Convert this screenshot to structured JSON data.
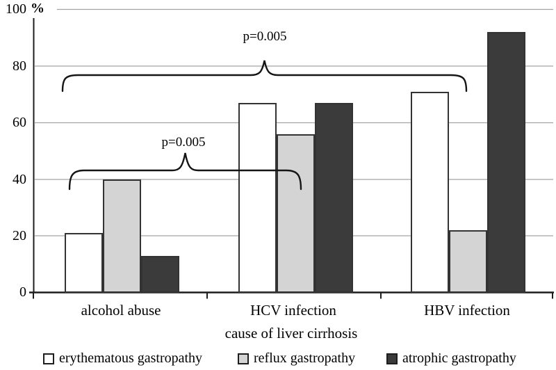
{
  "chart_data": {
    "type": "bar",
    "title": "",
    "categories": [
      "alcohol abuse",
      "HCV infection",
      "HBV infection"
    ],
    "series": [
      {
        "name": "erythematous gastropathy",
        "color": "#ffffff",
        "values": [
          21,
          67,
          71
        ]
      },
      {
        "name": "reflux gastropathy",
        "color": "#d4d4d4",
        "values": [
          40,
          56,
          22
        ]
      },
      {
        "name": "atrophic gastropathy",
        "color": "#3b3b3b",
        "values": [
          13,
          67,
          92
        ]
      }
    ],
    "xlabel": "cause of liver cirrhosis",
    "ylabel": "%",
    "ylim": [
      0,
      100
    ],
    "yticks": [
      "0",
      "20",
      "40",
      "60",
      "80",
      "100"
    ],
    "grid": true,
    "legend_position": "bottom",
    "annotations": [
      {
        "text": "p=0.005",
        "compares": [
          "alcohol abuse",
          "HBV infection"
        ],
        "bracket": "upper"
      },
      {
        "text": "p=0.005",
        "compares": [
          "alcohol abuse",
          "HCV infection"
        ],
        "bracket": "lower"
      }
    ]
  }
}
